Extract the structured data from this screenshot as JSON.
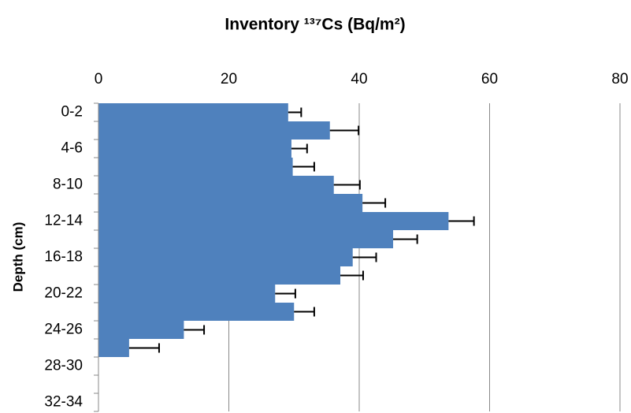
{
  "chart_data": {
    "type": "hbar-error",
    "title": "Inventory ¹³⁷Cs (Bq/m²)",
    "y_label": "Depth (cm)",
    "categories": [
      "0-2",
      null,
      "4-6",
      null,
      "8-10",
      null,
      "12-14",
      null,
      "16-18",
      null,
      "20-22",
      null,
      "24-26",
      null,
      "28-30",
      null,
      "32-34"
    ],
    "values": [
      29.1,
      35.5,
      29.6,
      29.8,
      36.1,
      40.5,
      53.7,
      45.2,
      39.0,
      37.1,
      27.1,
      30.0,
      13.1,
      4.7,
      null,
      null,
      null
    ],
    "errors": [
      2.0,
      4.4,
      2.4,
      3.3,
      4.0,
      3.5,
      3.9,
      3.7,
      3.6,
      3.5,
      3.1,
      3.1,
      3.1,
      4.6,
      null,
      null,
      null
    ],
    "color": "#4f81bd",
    "xlim": [
      0,
      80
    ],
    "xticks": [
      0,
      20,
      40,
      60,
      80
    ],
    "grid": true
  }
}
